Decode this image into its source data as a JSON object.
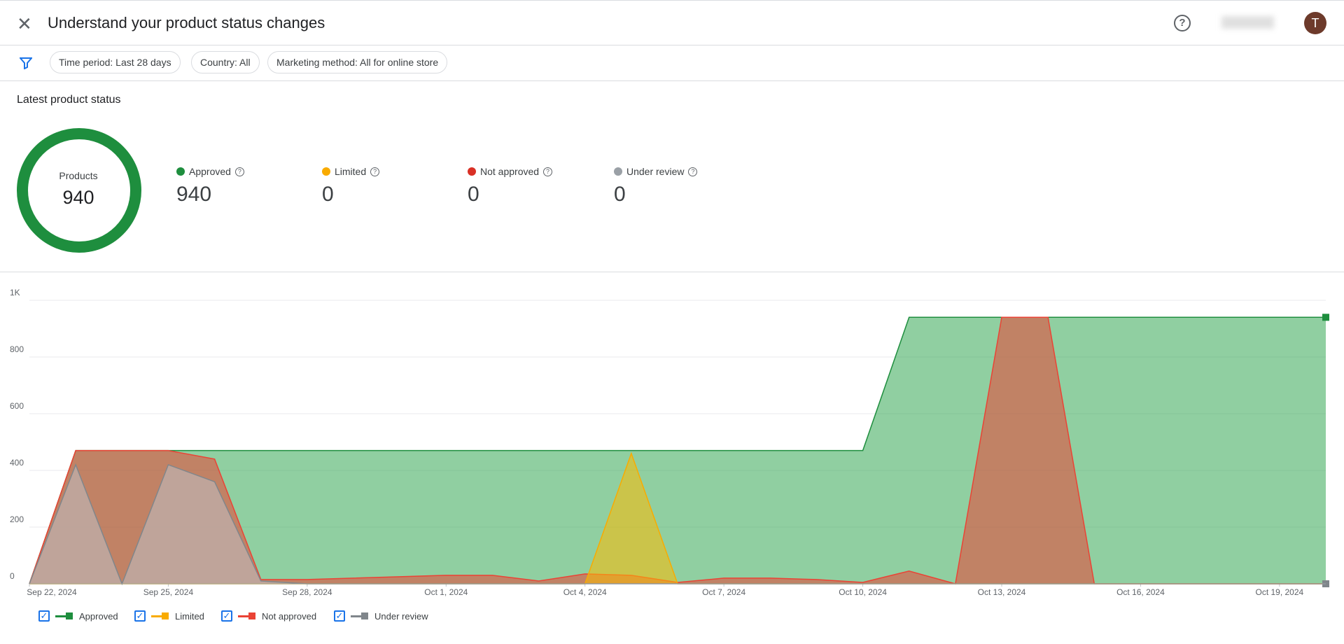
{
  "header": {
    "title": "Understand your product status changes",
    "avatar": "T"
  },
  "filters": [
    "Time period: Last 28 days",
    "Country: All",
    "Marketing method: All for online store"
  ],
  "status": {
    "title": "Latest product status",
    "donut_label": "Products",
    "total": 940,
    "items": [
      {
        "label": "Approved",
        "value": 940,
        "color": "#1e8e3e"
      },
      {
        "label": "Limited",
        "value": 0,
        "color": "#f9ab00"
      },
      {
        "label": "Not approved",
        "value": 0,
        "color": "#d93025"
      },
      {
        "label": "Under review",
        "value": 0,
        "color": "#9aa0a6"
      }
    ]
  },
  "chart_data": {
    "type": "area",
    "x": [
      "Sep 22, 2024",
      "Sep 23, 2024",
      "Sep 24, 2024",
      "Sep 25, 2024",
      "Sep 26, 2024",
      "Sep 27, 2024",
      "Sep 28, 2024",
      "Sep 29, 2024",
      "Sep 30, 2024",
      "Oct 1, 2024",
      "Oct 2, 2024",
      "Oct 3, 2024",
      "Oct 4, 2024",
      "Oct 5, 2024",
      "Oct 6, 2024",
      "Oct 7, 2024",
      "Oct 8, 2024",
      "Oct 9, 2024",
      "Oct 10, 2024",
      "Oct 11, 2024",
      "Oct 12, 2024",
      "Oct 13, 2024",
      "Oct 14, 2024",
      "Oct 15, 2024",
      "Oct 16, 2024",
      "Oct 17, 2024",
      "Oct 18, 2024",
      "Oct 19, 2024",
      "Oct 20, 2024"
    ],
    "xlim": [
      "Sep 22, 2024",
      "Oct 20, 2024"
    ],
    "xticks": [
      "Sep 22, 2024",
      "Sep 25, 2024",
      "Sep 28, 2024",
      "Oct 1, 2024",
      "Oct 4, 2024",
      "Oct 7, 2024",
      "Oct 10, 2024",
      "Oct 13, 2024",
      "Oct 16, 2024",
      "Oct 19, 2024"
    ],
    "ylim": [
      0,
      1000
    ],
    "yticks": [
      0,
      200,
      400,
      600,
      800,
      {
        "value": 1000,
        "label": "1K"
      }
    ],
    "grid": true,
    "series": [
      {
        "name": "Approved",
        "color": "#1e8e3e",
        "fill": "#34a853",
        "values": [
          0,
          470,
          470,
          470,
          470,
          470,
          470,
          470,
          470,
          470,
          470,
          470,
          470,
          470,
          470,
          470,
          470,
          470,
          470,
          940,
          940,
          940,
          940,
          940,
          940,
          940,
          940,
          940,
          940
        ]
      },
      {
        "name": "Not approved",
        "color": "#ea4335",
        "fill": "#ea4335",
        "values": [
          0,
          470,
          470,
          470,
          440,
          15,
          15,
          20,
          25,
          30,
          30,
          10,
          35,
          30,
          5,
          20,
          20,
          15,
          5,
          45,
          0,
          940,
          940,
          0,
          0,
          0,
          0,
          0,
          0
        ]
      },
      {
        "name": "Limited",
        "color": "#f9ab00",
        "fill": "#fbbc04",
        "values": [
          0,
          0,
          0,
          0,
          0,
          0,
          0,
          0,
          0,
          0,
          0,
          0,
          0,
          460,
          0,
          0,
          0,
          0,
          0,
          0,
          0,
          0,
          0,
          0,
          0,
          0,
          0,
          0,
          0
        ]
      },
      {
        "name": "Under review",
        "color": "#80868b",
        "fill": "#bdc1c6",
        "values": [
          0,
          420,
          0,
          420,
          360,
          10,
          0,
          0,
          0,
          0,
          0,
          0,
          0,
          0,
          0,
          0,
          0,
          0,
          0,
          0,
          0,
          0,
          0,
          0,
          0,
          0,
          0,
          0,
          0
        ]
      }
    ],
    "legend_order": [
      0,
      2,
      1,
      3
    ]
  }
}
